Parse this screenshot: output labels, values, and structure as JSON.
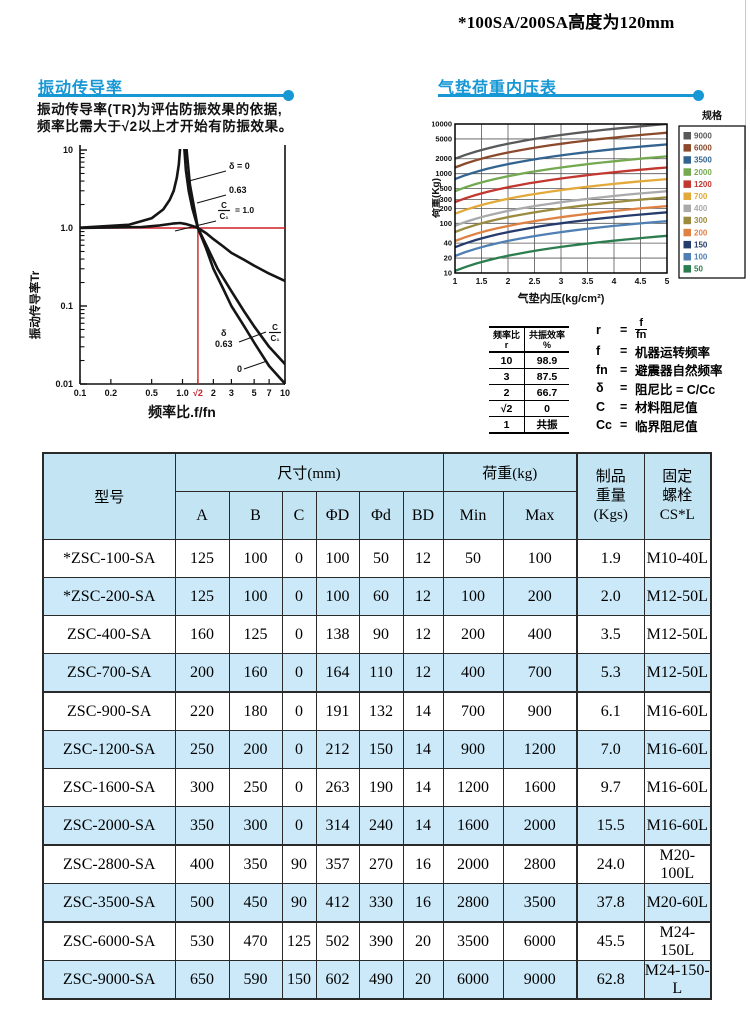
{
  "note": "*100SA/200SA高度为120mm",
  "sections": {
    "left_title": "振动传导率",
    "right_title": "气垫荷重内压表"
  },
  "description": {
    "line1": "振动传导率(TR)为评估防振效果的依据,",
    "line2": "频率比需大于√2以上才开始有防振效果。"
  },
  "chart_data": [
    {
      "id": "transmissibility",
      "type": "line",
      "x_scale": "log",
      "y_scale": "log",
      "xlabel": "频率比.f/fn",
      "ylabel": "振动传导率Tr",
      "xlim": [
        0.1,
        10
      ],
      "ylim": [
        0.01,
        10
      ],
      "x_tick_values": [
        0.1,
        0.2,
        0.5,
        1.0,
        1.414,
        2,
        3,
        5,
        7,
        10
      ],
      "x_tick_labels": [
        "0.1",
        "0.2",
        "0.5",
        "1.0",
        "√2",
        "2",
        "3",
        "5",
        "7",
        "10"
      ],
      "y_tick_values": [
        10,
        1,
        0.1,
        0.01
      ],
      "y_tick_labels": [
        "10",
        "1.0",
        "0.1",
        "0.01"
      ],
      "reference_lines": {
        "horizontal_y": 1.0,
        "vertical_x": 1.414,
        "color": "#cc2128"
      },
      "series": [
        {
          "name": "delta=0 left branch",
          "points": [
            [
              0.1,
              1.01
            ],
            [
              0.3,
              1.1
            ],
            [
              0.5,
              1.33
            ],
            [
              0.65,
              1.73
            ],
            [
              0.75,
              2.29
            ],
            [
              0.82,
              3.0
            ],
            [
              0.88,
              4.4
            ],
            [
              0.92,
              6.5
            ],
            [
              0.95,
              11
            ]
          ]
        },
        {
          "name": "delta=0 right branch",
          "points": [
            [
              1.04,
              11
            ],
            [
              1.08,
              5.5
            ],
            [
              1.15,
              3.0
            ],
            [
              1.25,
              1.78
            ],
            [
              1.414,
              1.0
            ],
            [
              1.7,
              0.55
            ],
            [
              2,
              0.3
            ],
            [
              2.5,
              0.165
            ],
            [
              3,
              0.1
            ],
            [
              4,
              0.055
            ],
            [
              5,
              0.034
            ],
            [
              7,
              0.017
            ],
            [
              10,
              0.0101
            ]
          ]
        },
        {
          "name": "delta=0.63",
          "points": [
            [
              1.09,
              11
            ],
            [
              1.18,
              3.6
            ],
            [
              1.3,
              1.8
            ],
            [
              1.414,
              1.0
            ],
            [
              1.8,
              0.52
            ],
            [
              2.2,
              0.3
            ],
            [
              3,
              0.155
            ],
            [
              4,
              0.085
            ],
            [
              5,
              0.055
            ],
            [
              7,
              0.03
            ],
            [
              10,
              0.018
            ]
          ]
        },
        {
          "name": "C/C1=1.0",
          "points": [
            [
              0.1,
              1.0
            ],
            [
              0.4,
              1.03
            ],
            [
              0.6,
              1.08
            ],
            [
              0.8,
              1.14
            ],
            [
              0.95,
              1.16
            ],
            [
              1.1,
              1.12
            ],
            [
              1.25,
              1.06
            ],
            [
              1.414,
              1.0
            ],
            [
              1.7,
              0.86
            ],
            [
              2,
              0.72
            ],
            [
              2.5,
              0.58
            ],
            [
              3,
              0.48
            ],
            [
              4,
              0.39
            ],
            [
              5,
              0.33
            ],
            [
              7,
              0.26
            ],
            [
              10,
              0.21
            ]
          ]
        }
      ],
      "annotations": {
        "top": [
          {
            "text": "δ = 0"
          },
          {
            "text": "0.63"
          },
          {
            "frac": {
              "num": "C",
              "den": "C₁",
              "suffix": "= 1.0"
            }
          }
        ],
        "bottom": [
          {
            "text": "δ"
          },
          {
            "text": "0.63"
          },
          {
            "frac": {
              "num": "C",
              "den": "C₁"
            }
          },
          {
            "text": "0"
          }
        ]
      }
    },
    {
      "id": "load_pressure",
      "type": "line",
      "x_scale": "linear",
      "y_scale": "log",
      "xlabel": "气垫内压(kg/cm²)",
      "ylabel": "荷重(Kg)",
      "legend_title": "规格",
      "xlim": [
        1,
        5
      ],
      "ylim": [
        10,
        10000
      ],
      "x_ticks": [
        1,
        1.5,
        2,
        2.5,
        3,
        3.5,
        4,
        4.5,
        5
      ],
      "y_tick_values": [
        10,
        20,
        40,
        100,
        200,
        300,
        500,
        1000,
        2000,
        5000,
        10000
      ],
      "series": [
        {
          "name": "9000",
          "color": "#58595b",
          "points": [
            [
              1,
              2000
            ],
            [
              2,
              4000
            ],
            [
              3,
              6000
            ],
            [
              4,
              8000
            ],
            [
              5,
              10000
            ]
          ]
        },
        {
          "name": "6000",
          "color": "#8b4a2b",
          "points": [
            [
              1,
              1333
            ],
            [
              2,
              2667
            ],
            [
              3,
              4000
            ],
            [
              4,
              5333
            ],
            [
              5,
              6667
            ]
          ]
        },
        {
          "name": "3500",
          "color": "#33638f",
          "points": [
            [
              1,
              778
            ],
            [
              2,
              1556
            ],
            [
              3,
              2333
            ],
            [
              4,
              3111
            ],
            [
              5,
              3889
            ]
          ]
        },
        {
          "name": "2000",
          "color": "#74a952",
          "points": [
            [
              1,
              444
            ],
            [
              2,
              889
            ],
            [
              3,
              1333
            ],
            [
              4,
              1778
            ],
            [
              5,
              2222
            ]
          ]
        },
        {
          "name": "1200",
          "color": "#c23730",
          "points": [
            [
              1,
              267
            ],
            [
              2,
              533
            ],
            [
              3,
              800
            ],
            [
              4,
              1067
            ],
            [
              5,
              1333
            ]
          ]
        },
        {
          "name": "700",
          "color": "#e2a93b",
          "points": [
            [
              1,
              156
            ],
            [
              2,
              311
            ],
            [
              3,
              467
            ],
            [
              4,
              622
            ],
            [
              5,
              778
            ]
          ]
        },
        {
          "name": "400",
          "color": "#a9aaac",
          "points": [
            [
              1,
              89
            ],
            [
              2,
              178
            ],
            [
              3,
              267
            ],
            [
              4,
              356
            ],
            [
              5,
              444
            ]
          ]
        },
        {
          "name": "300",
          "color": "#9b8b40",
          "points": [
            [
              1,
              67
            ],
            [
              2,
              133
            ],
            [
              3,
              200
            ],
            [
              4,
              267
            ],
            [
              5,
              333
            ]
          ]
        },
        {
          "name": "200",
          "color": "#de8244",
          "points": [
            [
              1,
              44
            ],
            [
              2,
              89
            ],
            [
              3,
              133
            ],
            [
              4,
              178
            ],
            [
              5,
              222
            ]
          ]
        },
        {
          "name": "150",
          "color": "#263c6d",
          "points": [
            [
              1,
              33
            ],
            [
              2,
              67
            ],
            [
              3,
              100
            ],
            [
              4,
              133
            ],
            [
              5,
              167
            ]
          ]
        },
        {
          "name": "100",
          "color": "#5080b3",
          "points": [
            [
              1,
              22
            ],
            [
              2,
              44
            ],
            [
              3,
              67
            ],
            [
              4,
              89
            ],
            [
              5,
              111
            ]
          ]
        },
        {
          "name": "50",
          "color": "#2c7d4f",
          "points": [
            [
              1,
              11
            ],
            [
              2,
              22
            ],
            [
              3,
              33
            ],
            [
              4,
              44
            ],
            [
              5,
              56
            ]
          ]
        }
      ]
    }
  ],
  "ratio_table": {
    "header": {
      "col1": "频率比\nr",
      "col2": "共振效率\n%"
    },
    "rows": [
      [
        "10",
        "98.9"
      ],
      [
        "3",
        "87.5"
      ],
      [
        "2",
        "66.7"
      ],
      [
        "√2",
        "0"
      ],
      [
        "1",
        "共振"
      ]
    ]
  },
  "definitions": [
    {
      "term": "r",
      "fraction": {
        "num": "f",
        "den": "fn"
      }
    },
    {
      "term": "f",
      "value": "机器运转频率"
    },
    {
      "term": "fn",
      "value": "避震器自然频率"
    },
    {
      "term": "δ",
      "value": "阻尼比 = C/Cc"
    },
    {
      "term": "C",
      "value": "材料阻尼值"
    },
    {
      "term": "Cc",
      "value": "临界阻尼值"
    }
  ],
  "spec_table": {
    "headers": {
      "model": "型号",
      "dim_group": "尺寸(mm)",
      "load_group": "荷重(kg)",
      "dims": [
        "A",
        "B",
        "C",
        "ΦD",
        "Φd",
        "BD"
      ],
      "load": [
        "Min",
        "Max"
      ],
      "weight": "制品\n重量\n(Kgs)",
      "bolt": "固定\n螺栓\nCS*L"
    },
    "rows": [
      [
        "*ZSC-100-SA",
        "125",
        "100",
        "0",
        "100",
        "50",
        "12",
        "50",
        "100",
        "1.9",
        "M10-40L"
      ],
      [
        "*ZSC-200-SA",
        "125",
        "100",
        "0",
        "100",
        "60",
        "12",
        "100",
        "200",
        "2.0",
        "M12-50L"
      ],
      [
        "ZSC-400-SA",
        "160",
        "125",
        "0",
        "138",
        "90",
        "12",
        "200",
        "400",
        "3.5",
        "M12-50L"
      ],
      [
        "ZSC-700-SA",
        "200",
        "160",
        "0",
        "164",
        "110",
        "12",
        "400",
        "700",
        "5.3",
        "M12-50L"
      ],
      [
        "ZSC-900-SA",
        "220",
        "180",
        "0",
        "191",
        "132",
        "14",
        "700",
        "900",
        "6.1",
        "M16-60L"
      ],
      [
        "ZSC-1200-SA",
        "250",
        "200",
        "0",
        "212",
        "150",
        "14",
        "900",
        "1200",
        "7.0",
        "M16-60L"
      ],
      [
        "ZSC-1600-SA",
        "300",
        "250",
        "0",
        "263",
        "190",
        "14",
        "1200",
        "1600",
        "9.7",
        "M16-60L"
      ],
      [
        "ZSC-2000-SA",
        "350",
        "300",
        "0",
        "314",
        "240",
        "14",
        "1600",
        "2000",
        "15.5",
        "M16-60L"
      ],
      [
        "ZSC-2800-SA",
        "400",
        "350",
        "90",
        "357",
        "270",
        "16",
        "2000",
        "2800",
        "24.0",
        "M20-100L"
      ],
      [
        "ZSC-3500-SA",
        "500",
        "450",
        "90",
        "412",
        "330",
        "16",
        "2800",
        "3500",
        "37.8",
        "M20-60L"
      ],
      [
        "ZSC-6000-SA",
        "530",
        "470",
        "125",
        "502",
        "390",
        "20",
        "3500",
        "6000",
        "45.5",
        "M24-150L"
      ],
      [
        "ZSC-9000-SA",
        "650",
        "590",
        "150",
        "602",
        "490",
        "20",
        "6000",
        "9000",
        "62.8",
        "M24-150-L"
      ]
    ]
  }
}
